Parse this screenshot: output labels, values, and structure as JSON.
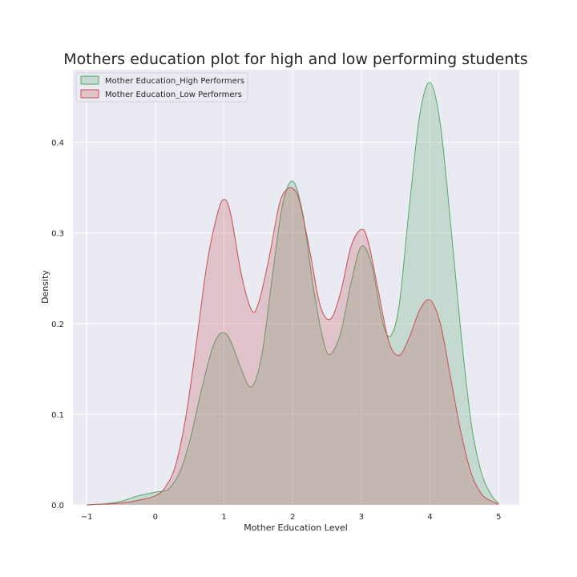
{
  "chart_data": {
    "type": "area",
    "title": "Mothers education plot for high and low performing students",
    "xlabel": "Mother Education Level",
    "ylabel": "Density",
    "xlim": [
      -1.2,
      5.3
    ],
    "ylim": [
      0,
      0.48
    ],
    "xticks": [
      "−1",
      "0",
      "1",
      "2",
      "3",
      "4",
      "5"
    ],
    "xtick_values": [
      -1,
      0,
      1,
      2,
      3,
      4,
      5
    ],
    "yticks": [
      "0.0",
      "0.1",
      "0.2",
      "0.3",
      "0.4"
    ],
    "ytick_values": [
      0,
      0.1,
      0.2,
      0.3,
      0.4
    ],
    "grid": true,
    "legend_position": "top-left",
    "series": [
      {
        "name": "Mother Education_High Performers",
        "color": "#55a868",
        "x": [
          -1,
          -0.75,
          -0.5,
          -0.25,
          0,
          0.1,
          0.2,
          0.35,
          0.5,
          0.65,
          0.8,
          0.9,
          1,
          1.1,
          1.25,
          1.4,
          1.55,
          1.7,
          1.85,
          2,
          2.15,
          2.3,
          2.45,
          2.55,
          2.7,
          2.85,
          3,
          3.15,
          3.3,
          3.42,
          3.55,
          3.7,
          3.85,
          4,
          4.15,
          4.3,
          4.45,
          4.6,
          4.75,
          4.9,
          5
        ],
        "y": [
          0,
          0.001,
          0.004,
          0.01,
          0.014,
          0.015,
          0.018,
          0.035,
          0.07,
          0.12,
          0.165,
          0.185,
          0.19,
          0.18,
          0.15,
          0.13,
          0.165,
          0.25,
          0.33,
          0.357,
          0.32,
          0.24,
          0.18,
          0.166,
          0.19,
          0.245,
          0.285,
          0.265,
          0.205,
          0.186,
          0.22,
          0.33,
          0.43,
          0.466,
          0.42,
          0.31,
          0.19,
          0.09,
          0.035,
          0.01,
          0.002
        ]
      },
      {
        "name": "Mother Education_Low Performers",
        "color": "#c44e52",
        "x": [
          -1,
          -0.75,
          -0.5,
          -0.25,
          0,
          0.15,
          0.3,
          0.45,
          0.6,
          0.75,
          0.9,
          1,
          1.1,
          1.25,
          1.4,
          1.5,
          1.65,
          1.8,
          1.9,
          2,
          2.1,
          2.25,
          2.4,
          2.55,
          2.7,
          2.85,
          3,
          3.1,
          3.25,
          3.4,
          3.55,
          3.7,
          3.85,
          4,
          4.15,
          4.3,
          4.45,
          4.6,
          4.75,
          4.9,
          5
        ],
        "y": [
          0,
          0.001,
          0.002,
          0.005,
          0.01,
          0.02,
          0.045,
          0.1,
          0.18,
          0.265,
          0.32,
          0.337,
          0.32,
          0.255,
          0.215,
          0.222,
          0.27,
          0.33,
          0.347,
          0.349,
          0.335,
          0.28,
          0.22,
          0.205,
          0.235,
          0.285,
          0.304,
          0.29,
          0.235,
          0.18,
          0.165,
          0.185,
          0.215,
          0.226,
          0.2,
          0.14,
          0.08,
          0.035,
          0.012,
          0.004,
          0.001
        ]
      }
    ]
  }
}
